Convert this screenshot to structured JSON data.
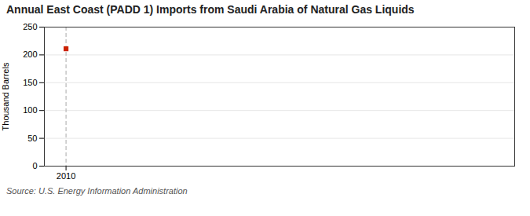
{
  "chart_data": {
    "type": "scatter",
    "title": "Annual East Coast (PADD 1) Imports from Saudi Arabia of Natural Gas Liquids",
    "ylabel": "Thousand Barrels",
    "source": "Source: U.S. Energy Information Administration",
    "x": [
      2010
    ],
    "values": [
      211
    ],
    "color": "#cc2200",
    "marker": "square",
    "xlim": [
      2009.3,
      2024.5
    ],
    "xticks": [
      2010
    ],
    "ylim": [
      0,
      250
    ],
    "yticks": [
      0,
      50,
      100,
      150,
      200,
      250
    ],
    "grid": true
  }
}
